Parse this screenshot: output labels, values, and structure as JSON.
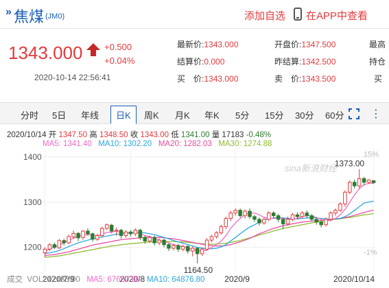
{
  "header": {
    "title": "焦煤",
    "code": "(JM0)",
    "add_watch": "添加自选",
    "app_view": "在APP中查看"
  },
  "quote": {
    "price": "1343.000",
    "change": "+0.500",
    "change_pct": "+0.04%",
    "timestamp": "2020-10-14 22:56:41",
    "fields": {
      "latest_label": "最新价:",
      "latest_value": "1343.000",
      "settle_label": "结算价:",
      "settle_value": "0.000",
      "bid_label": "买　价:",
      "bid_value": "1343.000",
      "open_label": "开盘价:",
      "open_value": "1347.500",
      "prev_settle_label": "昨结算:",
      "prev_settle_value": "1342.500",
      "ask_label": "卖　价:",
      "ask_value": "1343.500",
      "high_label": "最高",
      "hold_label": "持仓",
      "buy_vol_label": "买"
    }
  },
  "tabs": [
    "分时",
    "5日",
    "年线",
    "日K",
    "周K",
    "月K",
    "年K",
    "5分",
    "15分",
    "30分",
    "60分"
  ],
  "active_tab": "日K",
  "ohlc": {
    "date": "2020/10/14",
    "open_label": "开",
    "open": "1347.50",
    "high_label": "高",
    "high": "1348.50",
    "close_label": "收",
    "close": "1343.00",
    "low_label": "低",
    "low": "1341.00",
    "vol_label": "量",
    "vol": "17183",
    "pct": "-0.48%"
  },
  "ma": {
    "ma5": "MA5: 1341.40",
    "ma10": "MA10: 1302.20",
    "ma20": "MA20: 1282.03",
    "ma30": "MA30: 1274.88"
  },
  "volume": {
    "label": "成交",
    "vol": "VOL: 17183.00",
    "ma5": "MA5: 67657.80",
    "ma10": "MA10: 64876.80"
  },
  "colors": {
    "up": "#e4393c",
    "down": "#2e7d32",
    "ma5": "#f06ac8",
    "ma10": "#29a8e0",
    "ma20": "#e84da0",
    "ma30": "#8fbc2f"
  },
  "chart_data": {
    "type": "candlestick",
    "y_ticks": [
      "1400",
      "1300",
      "1200"
    ],
    "y_tick_values": [
      1400,
      1300,
      1200
    ],
    "x_labels": [
      "2020/7/9",
      "2020/8",
      "2020/9",
      "2020/10/14"
    ],
    "x_label_index": [
      0,
      18,
      40,
      69
    ],
    "pct_labels": [
      "15%",
      "-1%"
    ],
    "pct_label_values": [
      1407,
      1190
    ],
    "max_label": "1373.00",
    "min_label": "1164.50",
    "max_index": 66,
    "min_index": 32,
    "watermark": "sina新浪财经",
    "ylim": [
      1148,
      1418
    ],
    "candles": [
      [
        1188,
        1196,
        1178,
        1200
      ],
      [
        1196,
        1206,
        1192,
        1209
      ],
      [
        1206,
        1200,
        1196,
        1211
      ],
      [
        1199,
        1215,
        1196,
        1219
      ],
      [
        1215,
        1210,
        1204,
        1219
      ],
      [
        1210,
        1224,
        1207,
        1228
      ],
      [
        1223,
        1231,
        1219,
        1237
      ],
      [
        1231,
        1221,
        1214,
        1234
      ],
      [
        1222,
        1236,
        1217,
        1238
      ],
      [
        1236,
        1230,
        1225,
        1242
      ],
      [
        1230,
        1218,
        1213,
        1233
      ],
      [
        1218,
        1226,
        1214,
        1230
      ],
      [
        1226,
        1242,
        1222,
        1246
      ],
      [
        1242,
        1250,
        1238,
        1253
      ],
      [
        1249,
        1236,
        1231,
        1252
      ],
      [
        1236,
        1238,
        1226,
        1244
      ],
      [
        1238,
        1226,
        1219,
        1241
      ],
      [
        1226,
        1234,
        1221,
        1238
      ],
      [
        1234,
        1230,
        1224,
        1238
      ],
      [
        1230,
        1238,
        1225,
        1242
      ],
      [
        1238,
        1222,
        1216,
        1241
      ],
      [
        1222,
        1214,
        1208,
        1226
      ],
      [
        1214,
        1222,
        1210,
        1226
      ],
      [
        1222,
        1210,
        1204,
        1226
      ],
      [
        1210,
        1216,
        1205,
        1220
      ],
      [
        1216,
        1206,
        1200,
        1219
      ],
      [
        1206,
        1198,
        1192,
        1210
      ],
      [
        1198,
        1204,
        1193,
        1208
      ],
      [
        1204,
        1196,
        1190,
        1208
      ],
      [
        1196,
        1202,
        1191,
        1206
      ],
      [
        1202,
        1192,
        1186,
        1205
      ],
      [
        1192,
        1198,
        1180,
        1202
      ],
      [
        1198,
        1186,
        1164.5,
        1200
      ],
      [
        1186,
        1196,
        1181,
        1200
      ],
      [
        1196,
        1216,
        1192,
        1220
      ],
      [
        1216,
        1224,
        1211,
        1228
      ],
      [
        1224,
        1232,
        1219,
        1236
      ],
      [
        1232,
        1246,
        1228,
        1250
      ],
      [
        1246,
        1264,
        1240,
        1268
      ],
      [
        1264,
        1276,
        1258,
        1281
      ],
      [
        1276,
        1282,
        1270,
        1286
      ],
      [
        1282,
        1270,
        1266,
        1286
      ],
      [
        1270,
        1280,
        1264,
        1284
      ],
      [
        1280,
        1268,
        1263,
        1286
      ],
      [
        1268,
        1262,
        1256,
        1272
      ],
      [
        1262,
        1254,
        1248,
        1266
      ],
      [
        1254,
        1262,
        1250,
        1266
      ],
      [
        1262,
        1276,
        1258,
        1280
      ],
      [
        1276,
        1270,
        1264,
        1280
      ],
      [
        1270,
        1262,
        1256,
        1274
      ],
      [
        1262,
        1252,
        1240,
        1266
      ],
      [
        1252,
        1262,
        1248,
        1268
      ],
      [
        1262,
        1272,
        1258,
        1276
      ],
      [
        1272,
        1268,
        1262,
        1278
      ],
      [
        1268,
        1276,
        1264,
        1280
      ],
      [
        1276,
        1270,
        1264,
        1282
      ],
      [
        1270,
        1262,
        1258,
        1274
      ],
      [
        1262,
        1256,
        1250,
        1266
      ],
      [
        1256,
        1250,
        1244,
        1260
      ],
      [
        1250,
        1262,
        1246,
        1266
      ],
      [
        1262,
        1276,
        1258,
        1280
      ],
      [
        1276,
        1282,
        1270,
        1286
      ],
      [
        1282,
        1296,
        1278,
        1300
      ],
      [
        1296,
        1322,
        1290,
        1326
      ],
      [
        1322,
        1344,
        1318,
        1348
      ],
      [
        1344,
        1336,
        1330,
        1350
      ],
      [
        1336,
        1352,
        1330,
        1373
      ],
      [
        1352,
        1344,
        1338,
        1356
      ],
      [
        1344,
        1349,
        1340,
        1351
      ],
      [
        1347.5,
        1343,
        1341,
        1348.5
      ]
    ],
    "ma5": [
      1192,
      1196,
      1200,
      1205,
      1210,
      1216,
      1220,
      1224,
      1227,
      1229,
      1227,
      1226,
      1229,
      1233,
      1234,
      1236,
      1233,
      1232,
      1232,
      1234,
      1231,
      1226,
      1224,
      1220,
      1216,
      1213,
      1210,
      1206,
      1204,
      1202,
      1198,
      1196,
      1193,
      1192,
      1194,
      1200,
      1206,
      1214,
      1226,
      1242,
      1254,
      1264,
      1272,
      1276,
      1276,
      1272,
      1266,
      1264,
      1264,
      1265,
      1264,
      1262,
      1262,
      1264,
      1268,
      1270,
      1270,
      1266,
      1262,
      1258,
      1260,
      1264,
      1272,
      1284,
      1300,
      1316,
      1330,
      1338,
      1342,
      1341.4
    ],
    "ma10": [
      1186,
      1188,
      1190,
      1193,
      1197,
      1202,
      1206,
      1210,
      1213,
      1216,
      1219,
      1221,
      1223,
      1225,
      1227,
      1229,
      1230,
      1231,
      1232,
      1233,
      1233,
      1232,
      1230,
      1228,
      1225,
      1222,
      1219,
      1215,
      1212,
      1209,
      1206,
      1203,
      1200,
      1198,
      1197,
      1197,
      1198,
      1201,
      1206,
      1214,
      1222,
      1230,
      1238,
      1245,
      1250,
      1256,
      1260,
      1263,
      1265,
      1266,
      1265,
      1264,
      1263,
      1263,
      1264,
      1265,
      1266,
      1265,
      1264,
      1263,
      1262,
      1263,
      1264,
      1268,
      1274,
      1282,
      1290,
      1298,
      1300,
      1302.2
    ],
    "ma20": [
      1182,
      1183,
      1184,
      1186,
      1188,
      1190,
      1193,
      1196,
      1199,
      1202,
      1205,
      1207,
      1209,
      1211,
      1213,
      1215,
      1217,
      1218,
      1219,
      1220,
      1221,
      1222,
      1222,
      1222,
      1222,
      1221,
      1220,
      1219,
      1217,
      1215,
      1213,
      1211,
      1209,
      1207,
      1205,
      1204,
      1203,
      1203,
      1204,
      1206,
      1209,
      1212,
      1216,
      1220,
      1225,
      1230,
      1234,
      1238,
      1242,
      1245,
      1248,
      1250,
      1252,
      1254,
      1256,
      1257,
      1258,
      1259,
      1260,
      1261,
      1262,
      1263,
      1264,
      1266,
      1268,
      1271,
      1274,
      1277,
      1280,
      1282.03
    ],
    "ma30": [
      1178,
      1179,
      1180,
      1181,
      1183,
      1185,
      1187,
      1189,
      1191,
      1193,
      1195,
      1197,
      1199,
      1201,
      1203,
      1204,
      1206,
      1207,
      1208,
      1209,
      1210,
      1211,
      1212,
      1212,
      1213,
      1213,
      1213,
      1213,
      1212,
      1212,
      1211,
      1210,
      1209,
      1208,
      1207,
      1207,
      1207,
      1208,
      1209,
      1211,
      1213,
      1215,
      1218,
      1221,
      1224,
      1227,
      1230,
      1233,
      1236,
      1239,
      1242,
      1244,
      1246,
      1248,
      1250,
      1252,
      1254,
      1256,
      1257,
      1259,
      1260,
      1262,
      1263,
      1265,
      1266,
      1268,
      1270,
      1272,
      1273,
      1274.88
    ]
  }
}
